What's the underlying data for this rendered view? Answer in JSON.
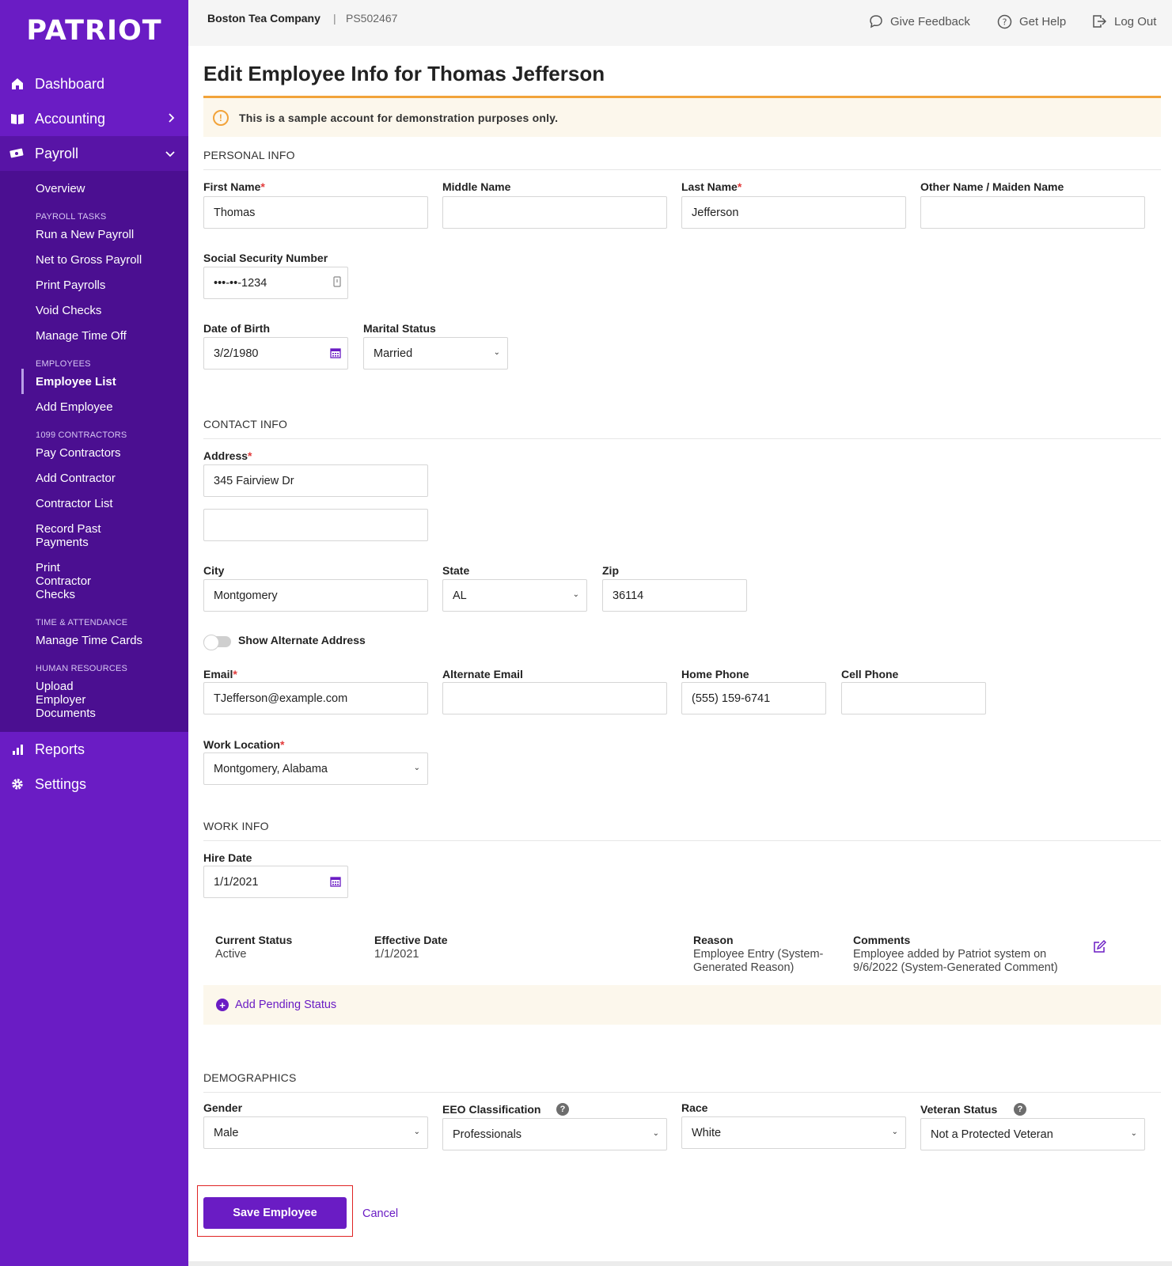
{
  "brand": {
    "logo": "PATRIOT",
    "accent": "#6a1cc4",
    "sidebar_dark": "#4b0f91"
  },
  "topbar": {
    "company": "Boston Tea Company",
    "separator": "|",
    "account_id": "PS502467",
    "feedback": "Give Feedback",
    "help": "Get Help",
    "logout": "Log Out"
  },
  "sidebar": {
    "dashboard": "Dashboard",
    "accounting": "Accounting",
    "payroll": "Payroll",
    "overview": "Overview",
    "sections": {
      "payroll_tasks": "PAYROLL TASKS",
      "employees": "EMPLOYEES",
      "contractors": "1099 CONTRACTORS",
      "time": "TIME & ATTENDANCE",
      "hr": "HUMAN RESOURCES"
    },
    "payroll_tasks": [
      "Run a New Payroll",
      "Net to Gross Payroll",
      "Print Payrolls",
      "Void Checks",
      "Manage Time Off"
    ],
    "employees": [
      "Employee List",
      "Add Employee"
    ],
    "contractors": [
      "Pay Contractors",
      "Add Contractor",
      "Contractor List",
      "Record Past Payments",
      "Print Contractor Checks"
    ],
    "time": [
      "Manage Time Cards"
    ],
    "hr": [
      "Upload Employer Documents"
    ],
    "reports": "Reports",
    "settings": "Settings"
  },
  "page": {
    "title": "Edit Employee Info for Thomas Jefferson",
    "alert": "This is a sample account for demonstration purposes only."
  },
  "personal": {
    "section": "PERSONAL INFO",
    "first_name_label": "First Name",
    "first_name": "Thomas",
    "middle_name_label": "Middle Name",
    "middle_name": "",
    "last_name_label": "Last Name",
    "last_name": "Jefferson",
    "other_name_label": "Other Name / Maiden Name",
    "other_name": "",
    "ssn_label": "Social Security Number",
    "ssn": "•••-••-1234",
    "dob_label": "Date of Birth",
    "dob": "3/2/1980",
    "marital_label": "Marital Status",
    "marital": "Married"
  },
  "contact": {
    "section": "CONTACT INFO",
    "address_label": "Address",
    "address1": "345 Fairview Dr",
    "address2": "",
    "city_label": "City",
    "city": "Montgomery",
    "state_label": "State",
    "state": "AL",
    "zip_label": "Zip",
    "zip": "36114",
    "alt_address_label": "Show Alternate Address",
    "email_label": "Email",
    "email": "TJefferson@example.com",
    "alt_email_label": "Alternate Email",
    "alt_email": "",
    "home_phone_label": "Home Phone",
    "home_phone": "(555) 159-6741",
    "cell_phone_label": "Cell Phone",
    "cell_phone": "",
    "work_location_label": "Work Location",
    "work_location": "Montgomery, Alabama"
  },
  "work": {
    "section": "WORK INFO",
    "hire_date_label": "Hire Date",
    "hire_date": "1/1/2021",
    "current_status_label": "Current Status",
    "current_status": "Active",
    "effective_date_label": "Effective Date",
    "effective_date": "1/1/2021",
    "reason_label": "Reason",
    "reason": "Employee Entry (System-Generated Reason)",
    "comments_label": "Comments",
    "comments": "Employee added by Patriot system on 9/6/2022 (System-Generated Comment)",
    "add_pending": "Add Pending Status"
  },
  "demographics": {
    "section": "DEMOGRAPHICS",
    "gender_label": "Gender",
    "gender": "Male",
    "eeo_label": "EEO Classification",
    "eeo": "Professionals",
    "race_label": "Race",
    "race": "White",
    "veteran_label": "Veteran Status",
    "veteran": "Not a Protected Veteran"
  },
  "actions": {
    "save": "Save Employee",
    "cancel": "Cancel"
  }
}
